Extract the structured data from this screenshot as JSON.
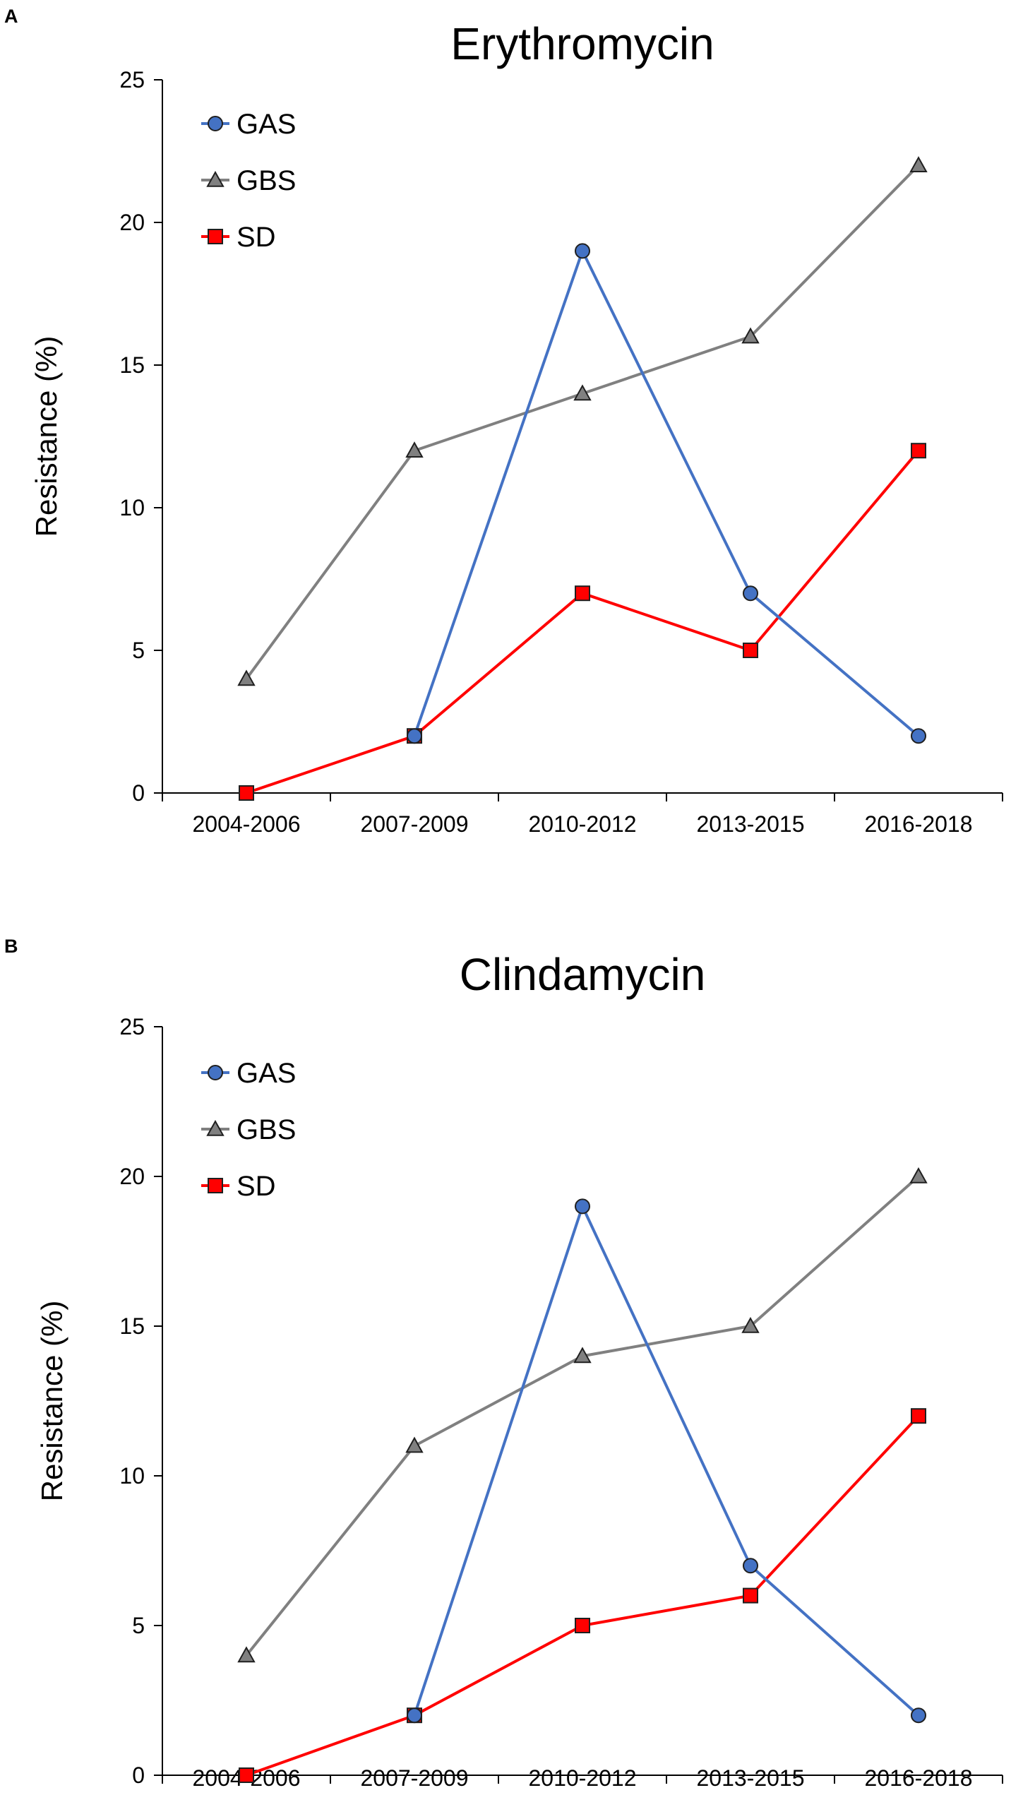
{
  "chart_data": [
    {
      "panel": "A",
      "type": "line",
      "title": "Erythromycin",
      "xlabel": "",
      "ylabel": "Resistance (%)",
      "categories": [
        "2004-2006",
        "2007-2009",
        "2010-2012",
        "2013-2015",
        "2016-2018"
      ],
      "ylim": [
        0,
        25
      ],
      "yticks": [
        "0",
        "5",
        "10",
        "15",
        "20",
        "25"
      ],
      "legend_position": "top-left",
      "series": [
        {
          "name": "GAS",
          "marker": "circle",
          "color": "#4472c4",
          "values": [
            null,
            2,
            19,
            7,
            2
          ]
        },
        {
          "name": "GBS",
          "marker": "triangle",
          "color": "#808080",
          "values": [
            4,
            12,
            14,
            16,
            22
          ]
        },
        {
          "name": "SD",
          "marker": "square",
          "color": "#ff0000",
          "values": [
            0,
            2,
            7,
            5,
            12
          ]
        }
      ]
    },
    {
      "panel": "B",
      "type": "line",
      "title": "Clindamycin",
      "xlabel": "",
      "ylabel": "Resistance (%)",
      "categories": [
        "2004-2006",
        "2007-2009",
        "2010-2012",
        "2013-2015",
        "2016-2018"
      ],
      "ylim": [
        0,
        25
      ],
      "yticks": [
        "0",
        "5",
        "10",
        "15",
        "20",
        "25"
      ],
      "legend_position": "top-left",
      "series": [
        {
          "name": "GAS",
          "marker": "circle",
          "color": "#4472c4",
          "values": [
            null,
            2,
            19,
            7,
            2
          ]
        },
        {
          "name": "GBS",
          "marker": "triangle",
          "color": "#808080",
          "values": [
            4,
            11,
            14,
            15,
            20
          ]
        },
        {
          "name": "SD",
          "marker": "square",
          "color": "#ff0000",
          "values": [
            0,
            2,
            5,
            6,
            12
          ]
        }
      ]
    }
  ]
}
